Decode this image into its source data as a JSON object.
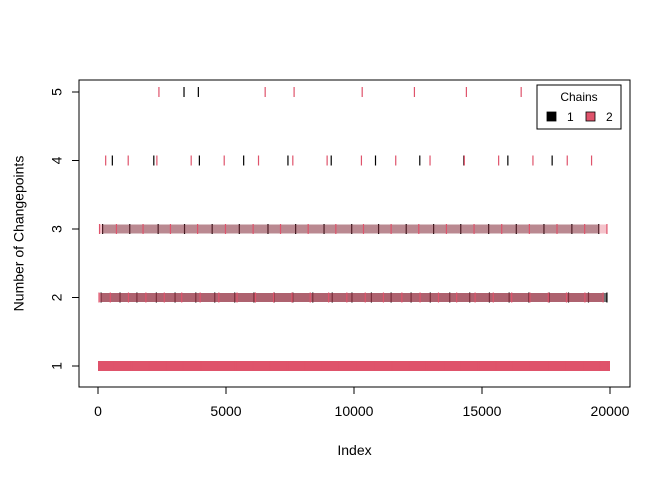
{
  "chart_data": {
    "type": "scatter",
    "title": "",
    "xlabel": "Index",
    "ylabel": "Number of Changepoints",
    "xlim": [
      0,
      20000
    ],
    "ylim": [
      1,
      5
    ],
    "x_ticks": [
      "0",
      "5000",
      "10000",
      "15000",
      "20000"
    ],
    "y_ticks": [
      "1",
      "2",
      "3",
      "4",
      "5"
    ],
    "marker": "vertical-bar",
    "grid": false,
    "legend": {
      "title": "Chains",
      "placement": "top-right",
      "entries": [
        "1",
        "2"
      ]
    },
    "series": [
      {
        "name": "1",
        "color": "#000000",
        "points_by_level": [
          {
            "y": 1,
            "x": [
              2360,
              3420,
              6380,
              11060,
              16450,
              18950
            ]
          },
          {
            "y": 2,
            "x": [
              120,
              860,
              1520,
              2280,
              3010,
              3820,
              4560,
              5340,
              6090,
              6880,
              7610,
              8390,
              9150,
              9920,
              10680,
              11450,
              12230,
              12980,
              13740,
              14520,
              15290,
              16060,
              16830,
              17620,
              18380,
              19160,
              19880
            ]
          },
          {
            "y": 3,
            "x": [
              180,
              1240,
              2350,
              3380,
              4460,
              5520,
              6640,
              7720,
              8830,
              9910,
              10960,
              12040,
              13110,
              14170,
              15260,
              16340,
              17420,
              18510,
              19560
            ]
          },
          {
            "y": 4,
            "x": [
              560,
              2180,
              3960,
              5690,
              7420,
              9110,
              10840,
              12570,
              14290,
              16010,
              17740
            ]
          },
          {
            "y": 5,
            "x": [
              3360,
              3920
            ]
          }
        ]
      },
      {
        "name": "2",
        "color": "#DF536B",
        "points_by_level": [
          {
            "y": 1,
            "x": [
              40,
              640,
              1310,
              1980,
              2650,
              3330,
              4010,
              4690,
              5370,
              6050,
              6720,
              7400,
              8080,
              8760,
              9430,
              10110,
              10790,
              11470,
              12150,
              12830,
              13500,
              14180,
              14860,
              15540,
              16220,
              16890,
              17570,
              18250,
              18930,
              19610,
              19940
            ]
          },
          {
            "y": 2,
            "x": [
              40,
              480,
              1190,
              1870,
              2590,
              3270,
              3990,
              4720,
              5430,
              6150,
              6860,
              7580,
              8290,
              9010,
              9720,
              10440,
              11150,
              11870,
              12580,
              13300,
              14010,
              14730,
              15440,
              16160,
              16870,
              17590,
              18300,
              19020,
              19730
            ]
          },
          {
            "y": 3,
            "x": [
              60,
              720,
              1760,
              2830,
              3890,
              4980,
              6060,
              7130,
              8210,
              9290,
              10370,
              11450,
              12530,
              13610,
              14690,
              15770,
              16850,
              17930,
              19010,
              19880
            ]
          },
          {
            "y": 4,
            "x": [
              300,
              1180,
              2300,
              3640,
              4930,
              6270,
              7610,
              8950,
              10290,
              11630,
              12970,
              14310,
              15650,
              16990,
              18330,
              19280
            ]
          },
          {
            "y": 5,
            "x": [
              2380,
              6530,
              7660,
              10320,
              12360,
              14390,
              16530
            ]
          }
        ]
      }
    ]
  }
}
